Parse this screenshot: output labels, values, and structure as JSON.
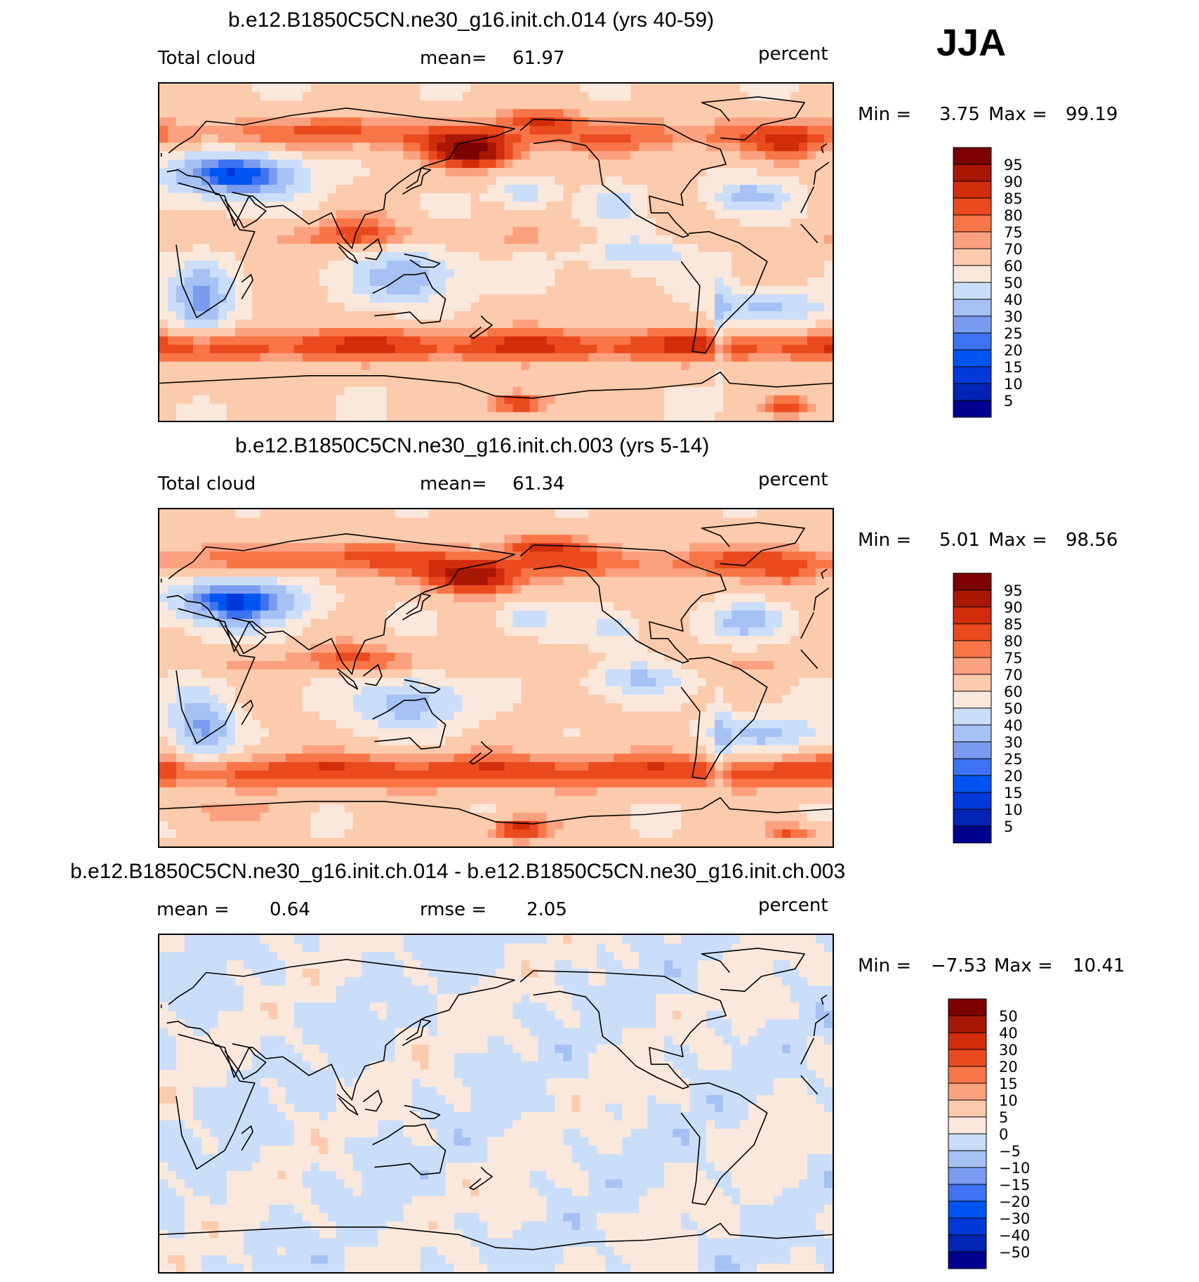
{
  "season": "JJA",
  "colors": {
    "seq": [
      "#00008f",
      "#0025b4",
      "#0039da",
      "#0055f2",
      "#3d72f2",
      "#7a9cf0",
      "#a6c1f4",
      "#cadef9",
      "#fbe8dc",
      "#fccaac",
      "#fca17f",
      "#f87547",
      "#ea4a1e",
      "#d12c0b",
      "#a81604",
      "#7c0000"
    ]
  },
  "panels": [
    {
      "title": "b.e12.B1850C5CN.ne30_g16.init.ch.014 (yrs 40-59)",
      "left": "Total cloud",
      "center_label": "mean=",
      "center_value": "61.97",
      "right": "percent",
      "min_label": "Min =",
      "min_value": "3.75",
      "max_label": "Max =",
      "max_value": "99.19",
      "levels": [
        "95",
        "90",
        "85",
        "80",
        "75",
        "70",
        "60",
        "50",
        "40",
        "30",
        "25",
        "20",
        "15",
        "10",
        "5"
      ],
      "field": "cloud"
    },
    {
      "title": "b.e12.B1850C5CN.ne30_g16.init.ch.003 (yrs 5-14)",
      "left": "Total cloud",
      "center_label": "mean=",
      "center_value": "61.34",
      "right": "percent",
      "min_label": "Min =",
      "min_value": "5.01",
      "max_label": "Max =",
      "max_value": "98.56",
      "levels": [
        "95",
        "90",
        "85",
        "80",
        "75",
        "70",
        "60",
        "50",
        "40",
        "30",
        "25",
        "20",
        "15",
        "10",
        "5"
      ],
      "field": "cloud"
    },
    {
      "title": "b.e12.B1850C5CN.ne30_g16.init.ch.014 - b.e12.B1850C5CN.ne30_g16.init.ch.003",
      "left": "mean =",
      "left_value": "0.64",
      "center_label": "rmse =",
      "center_value": "2.05",
      "right": "percent",
      "min_label": "Min =",
      "min_value": "−7.53",
      "max_label": "Max =",
      "max_value": "10.41",
      "levels": [
        "50",
        "40",
        "30",
        "20",
        "15",
        "10",
        "5",
        "0",
        "−5",
        "−10",
        "−15",
        "−20",
        "−30",
        "−40",
        "−50"
      ],
      "field": "diff"
    }
  ]
}
